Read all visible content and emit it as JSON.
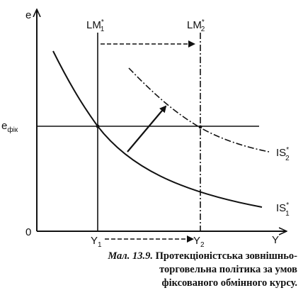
{
  "axes": {
    "y_label": "e",
    "x_label": "Y",
    "origin": "0"
  },
  "labels": {
    "lm1_main": "LM",
    "lm1_sup": "*",
    "lm1_sub": "1",
    "lm2_main": "LM",
    "lm2_sup": "*",
    "lm2_sub": "2",
    "is1_main": "IS",
    "is1_sup": "*",
    "is1_sub": "1",
    "is2_main": "IS",
    "is2_sup": "*",
    "is2_sub": "2",
    "efix_main": "e",
    "efix_sub": "фік",
    "y1_main": "Y",
    "y1_sub": "1",
    "y2_main": "Y",
    "y2_sub": "2"
  },
  "caption": {
    "lead": "Мал. 13.9.",
    "line1": "Протекціоністська зовнішньо-",
    "line2": "торговельна політика за умов",
    "line3": "фіксованого обмінного курсу."
  }
}
